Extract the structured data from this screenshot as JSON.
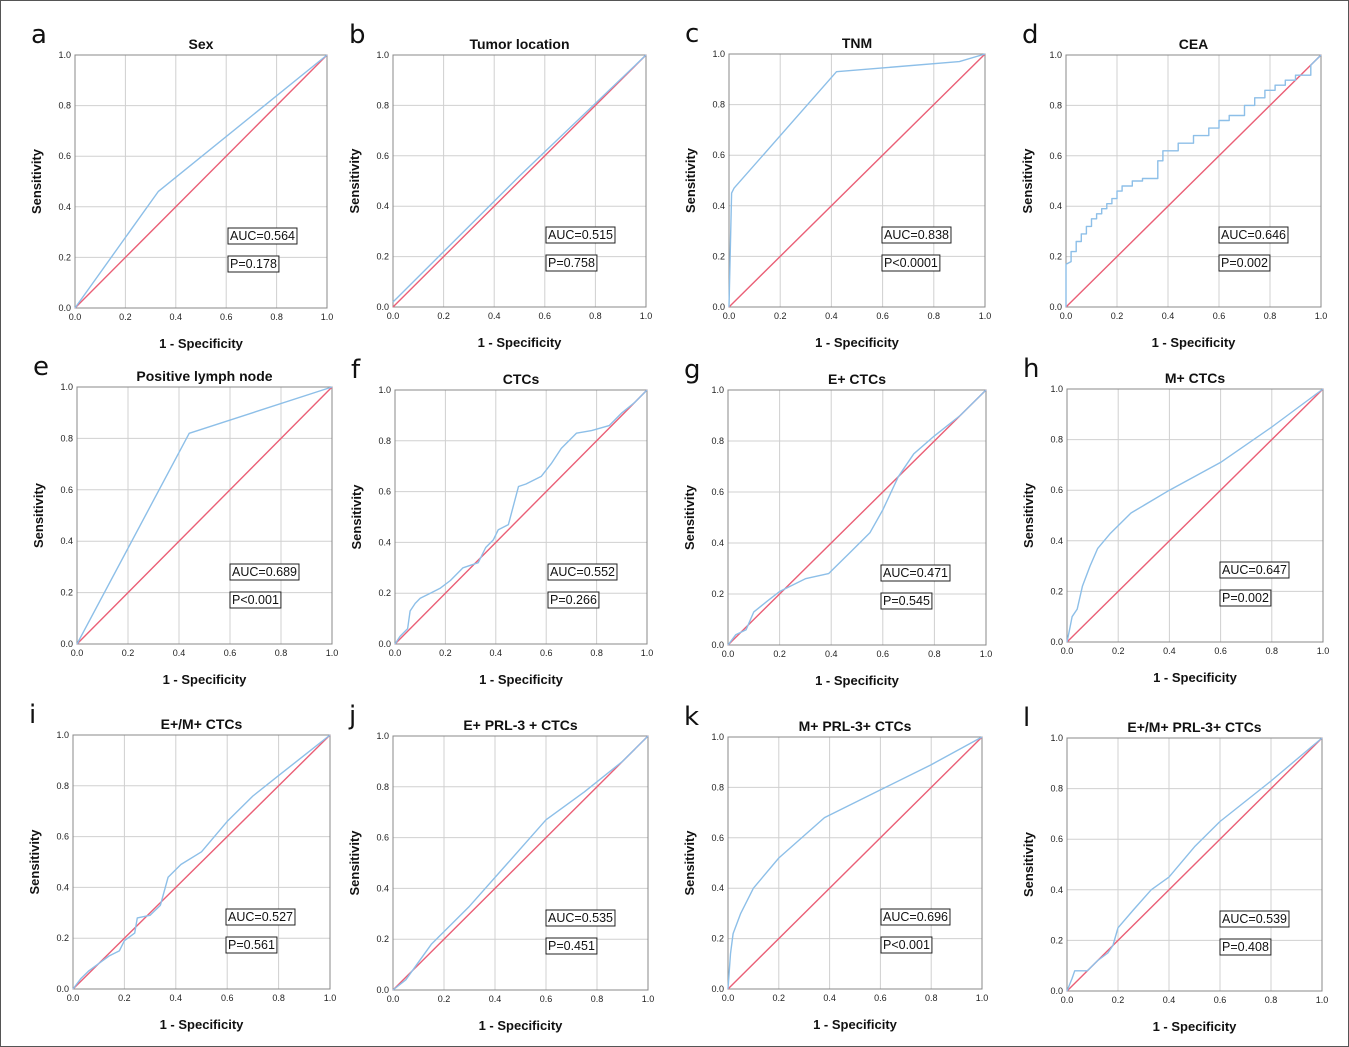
{
  "colors": {
    "roc_curve": "#8dbfe8",
    "reference_line": "#ea5f76",
    "grid": "#d0d0d0"
  },
  "chart_data": [
    {
      "type": "line",
      "panel": "a",
      "title": "Sex",
      "xlabel": "1 - Specificity",
      "ylabel": "Sensitivity",
      "xlim": [
        0,
        1
      ],
      "ylim": [
        0,
        1
      ],
      "grid": true,
      "ticks": [
        "0.0",
        "0.2",
        "0.4",
        "0.6",
        "0.8",
        "1.0"
      ],
      "series": [
        {
          "x": [
            0,
            0.33,
            1
          ],
          "y": [
            0,
            0.46,
            1
          ]
        }
      ],
      "annotations": [
        "AUC=0.564",
        "P=0.178"
      ]
    },
    {
      "type": "line",
      "panel": "b",
      "title": "Tumor location",
      "xlabel": "1 - Specificity",
      "ylabel": "Sensitivity",
      "xlim": [
        0,
        1
      ],
      "ylim": [
        0,
        1
      ],
      "grid": true,
      "ticks": [
        "0.0",
        "0.2",
        "0.4",
        "0.6",
        "0.8",
        "1.0"
      ],
      "series": [
        {
          "x": [
            0,
            0.5,
            1
          ],
          "y": [
            0.02,
            0.52,
            1
          ]
        }
      ],
      "annotations": [
        "AUC=0.515",
        "P=0.758"
      ]
    },
    {
      "type": "line",
      "panel": "c",
      "title": "TNM",
      "xlabel": "1 - Specificity",
      "ylabel": "Sensitivity",
      "xlim": [
        0,
        1
      ],
      "ylim": [
        0,
        1
      ],
      "grid": true,
      "ticks": [
        "0.0",
        "0.2",
        "0.4",
        "0.6",
        "0.8",
        "1.0"
      ],
      "series": [
        {
          "x": [
            0,
            0.01,
            0.02,
            0.42,
            0.9,
            1
          ],
          "y": [
            0,
            0.45,
            0.47,
            0.93,
            0.97,
            1
          ]
        }
      ],
      "annotations": [
        "AUC=0.838",
        "P<0.0001"
      ]
    },
    {
      "type": "line",
      "panel": "d",
      "title": "CEA",
      "xlabel": "1 - Specificity",
      "ylabel": "Sensitivity",
      "xlim": [
        0,
        1
      ],
      "ylim": [
        0,
        1
      ],
      "grid": true,
      "ticks": [
        "0.0",
        "0.2",
        "0.4",
        "0.6",
        "0.8",
        "1.0"
      ],
      "series": [
        {
          "x": [
            0,
            0,
            0.02,
            0.02,
            0.04,
            0.04,
            0.06,
            0.06,
            0.08,
            0.08,
            0.1,
            0.1,
            0.12,
            0.12,
            0.14,
            0.14,
            0.16,
            0.16,
            0.18,
            0.18,
            0.2,
            0.2,
            0.22,
            0.22,
            0.26,
            0.26,
            0.3,
            0.3,
            0.36,
            0.36,
            0.38,
            0.38,
            0.44,
            0.44,
            0.5,
            0.5,
            0.56,
            0.56,
            0.6,
            0.6,
            0.64,
            0.64,
            0.7,
            0.7,
            0.74,
            0.74,
            0.78,
            0.78,
            0.82,
            0.82,
            0.86,
            0.86,
            0.9,
            0.9,
            0.96,
            0.96,
            1
          ],
          "y": [
            0,
            0.17,
            0.18,
            0.22,
            0.22,
            0.26,
            0.26,
            0.29,
            0.29,
            0.32,
            0.32,
            0.35,
            0.35,
            0.37,
            0.37,
            0.39,
            0.39,
            0.41,
            0.41,
            0.43,
            0.43,
            0.46,
            0.46,
            0.48,
            0.48,
            0.5,
            0.5,
            0.51,
            0.51,
            0.58,
            0.58,
            0.62,
            0.62,
            0.65,
            0.65,
            0.68,
            0.68,
            0.71,
            0.71,
            0.74,
            0.74,
            0.76,
            0.76,
            0.8,
            0.8,
            0.83,
            0.83,
            0.86,
            0.86,
            0.88,
            0.88,
            0.9,
            0.9,
            0.92,
            0.92,
            0.96,
            1
          ]
        }
      ],
      "annotations": [
        "AUC=0.646",
        "P=0.002"
      ]
    },
    {
      "type": "line",
      "panel": "e",
      "title": "Positive lymph node",
      "xlabel": "1 - Specificity",
      "ylabel": "Sensitivity",
      "xlim": [
        0,
        1
      ],
      "ylim": [
        0,
        1
      ],
      "grid": true,
      "ticks": [
        "0.0",
        "0.2",
        "0.4",
        "0.6",
        "0.8",
        "1.0"
      ],
      "series": [
        {
          "x": [
            0,
            0.44,
            1
          ],
          "y": [
            0,
            0.82,
            1
          ]
        }
      ],
      "annotations": [
        "AUC=0.689",
        "P<0.001"
      ]
    },
    {
      "type": "line",
      "panel": "f",
      "title": "CTCs",
      "xlabel": "1 - Specificity",
      "ylabel": "Sensitivity",
      "xlim": [
        0,
        1
      ],
      "ylim": [
        0,
        1
      ],
      "grid": true,
      "ticks": [
        "0.0",
        "0.2",
        "0.4",
        "0.6",
        "0.8",
        "1.0"
      ],
      "series": [
        {
          "x": [
            0,
            0.02,
            0.05,
            0.06,
            0.08,
            0.1,
            0.14,
            0.18,
            0.22,
            0.27,
            0.33,
            0.36,
            0.39,
            0.41,
            0.45,
            0.49,
            0.52,
            0.58,
            0.62,
            0.66,
            0.72,
            0.78,
            0.85,
            0.9,
            0.95,
            1
          ],
          "y": [
            0,
            0.03,
            0.06,
            0.13,
            0.16,
            0.18,
            0.2,
            0.22,
            0.25,
            0.3,
            0.32,
            0.38,
            0.41,
            0.45,
            0.47,
            0.62,
            0.63,
            0.66,
            0.71,
            0.77,
            0.83,
            0.84,
            0.86,
            0.91,
            0.95,
            1
          ]
        }
      ],
      "annotations": [
        "AUC=0.552",
        "P=0.266"
      ]
    },
    {
      "type": "line",
      "panel": "g",
      "title": "E+ CTCs",
      "xlabel": "1 - Specificity",
      "ylabel": "Sensitivity",
      "xlim": [
        0,
        1
      ],
      "ylim": [
        0,
        1
      ],
      "grid": true,
      "ticks": [
        "0.0",
        "0.2",
        "0.4",
        "0.6",
        "0.8",
        "1.0"
      ],
      "series": [
        {
          "x": [
            0,
            0.03,
            0.07,
            0.1,
            0.15,
            0.2,
            0.3,
            0.39,
            0.47,
            0.55,
            0.6,
            0.66,
            0.72,
            0.8,
            0.9,
            1
          ],
          "y": [
            0,
            0.04,
            0.06,
            0.13,
            0.17,
            0.21,
            0.26,
            0.28,
            0.36,
            0.44,
            0.53,
            0.66,
            0.75,
            0.82,
            0.9,
            1
          ]
        }
      ],
      "annotations": [
        "AUC=0.471",
        "P=0.545"
      ]
    },
    {
      "type": "line",
      "panel": "h",
      "title": "M+ CTCs",
      "xlabel": "1 - Specificity",
      "ylabel": "Sensitivity",
      "xlim": [
        0,
        1
      ],
      "ylim": [
        0,
        1
      ],
      "grid": true,
      "ticks": [
        "0.0",
        "0.2",
        "0.4",
        "0.6",
        "0.8",
        "1.0"
      ],
      "series": [
        {
          "x": [
            0,
            0.01,
            0.02,
            0.04,
            0.06,
            0.09,
            0.12,
            0.17,
            0.25,
            0.4,
            0.6,
            0.8,
            1
          ],
          "y": [
            0,
            0.05,
            0.1,
            0.13,
            0.22,
            0.3,
            0.37,
            0.43,
            0.51,
            0.6,
            0.71,
            0.85,
            1
          ]
        }
      ],
      "annotations": [
        "AUC=0.647",
        "P=0.002"
      ]
    },
    {
      "type": "line",
      "panel": "i",
      "title": "E+/M+ CTCs",
      "xlabel": "1 - Specificity",
      "ylabel": "Sensitivity",
      "xlim": [
        0,
        1
      ],
      "ylim": [
        0,
        1
      ],
      "grid": true,
      "ticks": [
        "0.0",
        "0.2",
        "0.4",
        "0.6",
        "0.8",
        "1.0"
      ],
      "series": [
        {
          "x": [
            0,
            0.03,
            0.06,
            0.1,
            0.14,
            0.18,
            0.2,
            0.24,
            0.25,
            0.3,
            0.34,
            0.37,
            0.42,
            0.5,
            0.6,
            0.7,
            0.8,
            0.9,
            1
          ],
          "y": [
            0,
            0.04,
            0.07,
            0.1,
            0.13,
            0.15,
            0.19,
            0.22,
            0.28,
            0.29,
            0.33,
            0.44,
            0.49,
            0.54,
            0.66,
            0.76,
            0.84,
            0.92,
            1
          ]
        }
      ],
      "annotations": [
        "AUC=0.527",
        "P=0.561"
      ]
    },
    {
      "type": "line",
      "panel": "j",
      "title": "E+  PRL-3 + CTCs",
      "xlabel": "1 - Specificity",
      "ylabel": "Sensitivity",
      "xlim": [
        0,
        1
      ],
      "ylim": [
        0,
        1
      ],
      "grid": true,
      "ticks": [
        "0.0",
        "0.2",
        "0.4",
        "0.6",
        "0.8",
        "1.0"
      ],
      "series": [
        {
          "x": [
            0,
            0.05,
            0.15,
            0.3,
            0.45,
            0.6,
            0.75,
            0.9,
            1
          ],
          "y": [
            0,
            0.04,
            0.18,
            0.33,
            0.5,
            0.67,
            0.78,
            0.9,
            1
          ]
        }
      ],
      "annotations": [
        "AUC=0.535",
        "P=0.451"
      ]
    },
    {
      "type": "line",
      "panel": "k",
      "title": "M+  PRL-3+ CTCs",
      "xlabel": "1 - Specificity",
      "ylabel": "Sensitivity",
      "xlim": [
        0,
        1
      ],
      "ylim": [
        0,
        1
      ],
      "grid": true,
      "ticks": [
        "0.0",
        "0.2",
        "0.4",
        "0.6",
        "0.8",
        "1.0"
      ],
      "series": [
        {
          "x": [
            0,
            0.01,
            0.02,
            0.05,
            0.1,
            0.2,
            0.38,
            0.6,
            0.8,
            1
          ],
          "y": [
            0,
            0.14,
            0.22,
            0.3,
            0.4,
            0.52,
            0.68,
            0.79,
            0.89,
            1
          ]
        }
      ],
      "annotations": [
        "AUC=0.696",
        "P<0.001"
      ]
    },
    {
      "type": "line",
      "panel": "l",
      "title": "E+/M+  PRL-3+ CTCs",
      "xlabel": "1 - Specificity",
      "ylabel": "Sensitivity",
      "xlim": [
        0,
        1
      ],
      "ylim": [
        0,
        1
      ],
      "grid": true,
      "ticks": [
        "0.0",
        "0.2",
        "0.4",
        "0.6",
        "0.8",
        "1.0"
      ],
      "series": [
        {
          "x": [
            0,
            0.02,
            0.03,
            0.08,
            0.12,
            0.16,
            0.18,
            0.2,
            0.26,
            0.33,
            0.4,
            0.5,
            0.6,
            0.8,
            1
          ],
          "y": [
            0,
            0.05,
            0.08,
            0.08,
            0.12,
            0.15,
            0.18,
            0.25,
            0.32,
            0.4,
            0.45,
            0.57,
            0.67,
            0.83,
            1
          ]
        }
      ],
      "annotations": [
        "AUC=0.539",
        "P=0.408"
      ]
    }
  ]
}
